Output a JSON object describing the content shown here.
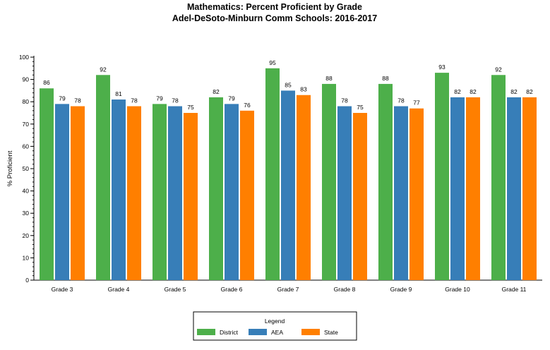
{
  "chart_data": {
    "type": "bar",
    "title": "Mathematics: Percent Proficient by Grade",
    "subtitle": "Adel-DeSoto-Minburn Comm Schools: 2016-2017",
    "xlabel": "",
    "ylabel": "% Proficient",
    "ylim": [
      0,
      100
    ],
    "yticks": [
      0,
      10,
      20,
      30,
      40,
      50,
      60,
      70,
      80,
      90,
      100
    ],
    "grid": false,
    "legend_placement": "bottom",
    "legend_title": "Legend",
    "categories": [
      "Grade 3",
      "Grade 4",
      "Grade 5",
      "Grade 6",
      "Grade 7",
      "Grade 8",
      "Grade 9",
      "Grade 10",
      "Grade 11"
    ],
    "series": [
      {
        "name": "District",
        "color": "#4daf4a",
        "values": [
          86,
          92,
          79,
          82,
          95,
          88,
          88,
          93,
          92
        ]
      },
      {
        "name": "AEA",
        "color": "#377eb8",
        "values": [
          79,
          81,
          78,
          79,
          85,
          78,
          78,
          82,
          82
        ]
      },
      {
        "name": "State",
        "color": "#ff7f00",
        "values": [
          78,
          78,
          75,
          76,
          83,
          75,
          77,
          82,
          82
        ]
      }
    ]
  }
}
